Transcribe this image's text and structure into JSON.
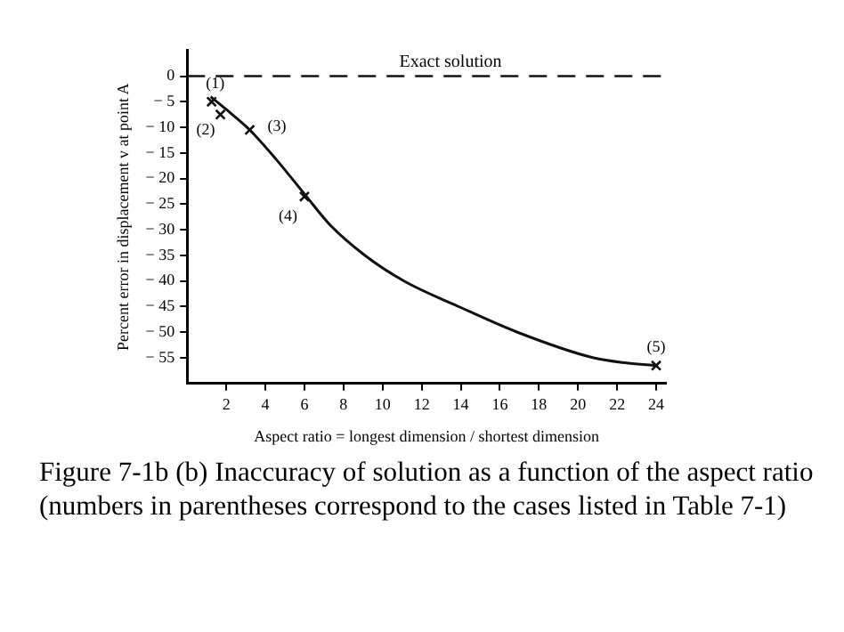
{
  "chart_data": {
    "type": "line",
    "xlabel": "Aspect ratio = longest dimension / shortest dimension",
    "ylabel": "Percent error in displacement v at point A",
    "x": [
      1.2,
      2,
      3.2,
      4.5,
      6,
      7.3,
      9.1,
      11.1,
      13.9,
      16.9,
      20.8,
      22.5,
      24
    ],
    "xlim": [
      0,
      24.5
    ],
    "xticks": [
      2,
      4,
      6,
      8,
      10,
      12,
      14,
      16,
      18,
      20,
      22,
      24
    ],
    "ylim": [
      -60,
      5
    ],
    "yticks": [
      0,
      -5,
      -10,
      -15,
      -20,
      -25,
      -30,
      -35,
      -40,
      -45,
      -50,
      -55
    ],
    "series": [
      {
        "type": "line",
        "color": "#111111",
        "marker": "none",
        "values": [
          -4,
          -6.5,
          -10.5,
          -16,
          -23,
          -29,
          -35,
          -40,
          -45,
          -50,
          -55,
          -56,
          -56.5
        ]
      },
      {
        "type": "scatter",
        "color": "#111111",
        "marker": "cross",
        "x": [
          1.25,
          1.7,
          3.2,
          6,
          24
        ],
        "values": [
          -5,
          -7.5,
          -10.5,
          -23.5,
          -56.5
        ]
      }
    ],
    "ref_lines": [
      {
        "axis": "y",
        "value": 0,
        "label": "Exact solution",
        "line_style": "dashed",
        "color": "#111111"
      }
    ],
    "annotations": [
      {
        "text": "(1)",
        "x": 1.25,
        "y": -5
      },
      {
        "text": "(2)",
        "x": 1.7,
        "y": -7.5
      },
      {
        "text": "(3)",
        "x": 3.2,
        "y": -10.5
      },
      {
        "text": "(4)",
        "x": 6,
        "y": -23.5
      },
      {
        "text": "(5)",
        "x": 24,
        "y": -56.5
      },
      "Figure 7-1b  (b) Inaccuracy of solution as a function of the aspect ratio (numbers in parentheses correspond to the cases listed in Table 7-1)"
    ],
    "grid": false
  }
}
